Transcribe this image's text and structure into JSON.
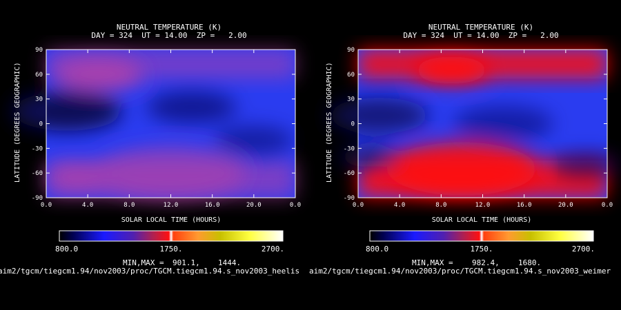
{
  "chart_data": [
    {
      "type": "heatmap",
      "title_line1": "NEUTRAL TEMPERATURE (K)",
      "title_line2": "DAY = 324  UT = 14.00  ZP =   2.00",
      "xlabel": "SOLAR LOCAL TIME (HOURS)",
      "ylabel": "LATITUDE (DEGREES GEOGRAPHIC)",
      "xlim": [
        0,
        24
      ],
      "ylim": [
        -90,
        90
      ],
      "xticks": [
        "0.0",
        "4.0",
        "8.0",
        "12.0",
        "16.0",
        "20.0",
        "0.0"
      ],
      "yticks": [
        "90",
        "60",
        "30",
        "0",
        "-30",
        "-60",
        "-90"
      ],
      "colorbar": {
        "min": 800.0,
        "max": 2700.0,
        "labels": [
          "800.0",
          "1750.",
          "2700."
        ]
      },
      "minmax_label": "MIN,MAX =",
      "min_value": "901.1,",
      "max_value": "1444.",
      "path": "aim2/tgcm/tiegcm1.94/nov2003/proc/TGCM.tiegcm1.94.s_nov2003_heelis",
      "z_min": 901.1,
      "z_max": 1444.0,
      "color_scale": {
        "low": "#0a0a55",
        "mid": "#2a3cf0",
        "high": "#b040a8"
      },
      "blobs": [
        {
          "x": 5,
          "y": 60,
          "r": 0.18,
          "v": 0.9
        },
        {
          "x": 3,
          "y": -65,
          "r": 0.12,
          "v": 0.85
        },
        {
          "x": 2,
          "y": 15,
          "r": 0.22,
          "v": -1.0
        },
        {
          "x": 14,
          "y": 20,
          "r": 0.18,
          "v": -0.6
        },
        {
          "x": 20,
          "y": -20,
          "r": 0.16,
          "v": -0.5
        },
        {
          "x": 12,
          "y": -60,
          "r": 0.3,
          "v": 0.6
        }
      ]
    },
    {
      "type": "heatmap",
      "title_line1": "NEUTRAL TEMPERATURE (K)",
      "title_line2": "DAY = 324  UT = 14.00  ZP =   2.00",
      "xlabel": "SOLAR LOCAL TIME (HOURS)",
      "ylabel": "LATITUDE (DEGREES GEOGRAPHIC)",
      "xlim": [
        0,
        24
      ],
      "ylim": [
        -90,
        90
      ],
      "xticks": [
        "0.0",
        "4.0",
        "8.0",
        "12.0",
        "16.0",
        "20.0",
        "0.0"
      ],
      "yticks": [
        "90",
        "60",
        "30",
        "0",
        "-30",
        "-60",
        "-90"
      ],
      "colorbar": {
        "min": 800.0,
        "max": 2700.0,
        "labels": [
          "800.0",
          "1750.",
          "2700."
        ]
      },
      "minmax_label": "MIN,MAX =",
      "min_value": "982.4,",
      "max_value": "1680.",
      "path": "aim2/tgcm/tiegcm1.94/nov2003/proc/TGCM.tiegcm1.94.s_nov2003_weimer",
      "z_min": 982.4,
      "z_max": 1680.0,
      "color_scale": {
        "low": "#0a0a60",
        "mid": "#2a3cf0",
        "high": "#ff1010"
      },
      "blobs": [
        {
          "x": 9,
          "y": 65,
          "r": 0.15,
          "v": 1.0
        },
        {
          "x": 2,
          "y": 10,
          "r": 0.2,
          "v": -0.8
        },
        {
          "x": 14,
          "y": 0,
          "r": 0.2,
          "v": -0.5
        },
        {
          "x": 10,
          "y": -55,
          "r": 0.3,
          "v": 0.9
        },
        {
          "x": 22,
          "y": -50,
          "r": 0.14,
          "v": -0.6
        },
        {
          "x": 1,
          "y": -40,
          "r": 0.12,
          "v": -0.7
        }
      ]
    }
  ]
}
